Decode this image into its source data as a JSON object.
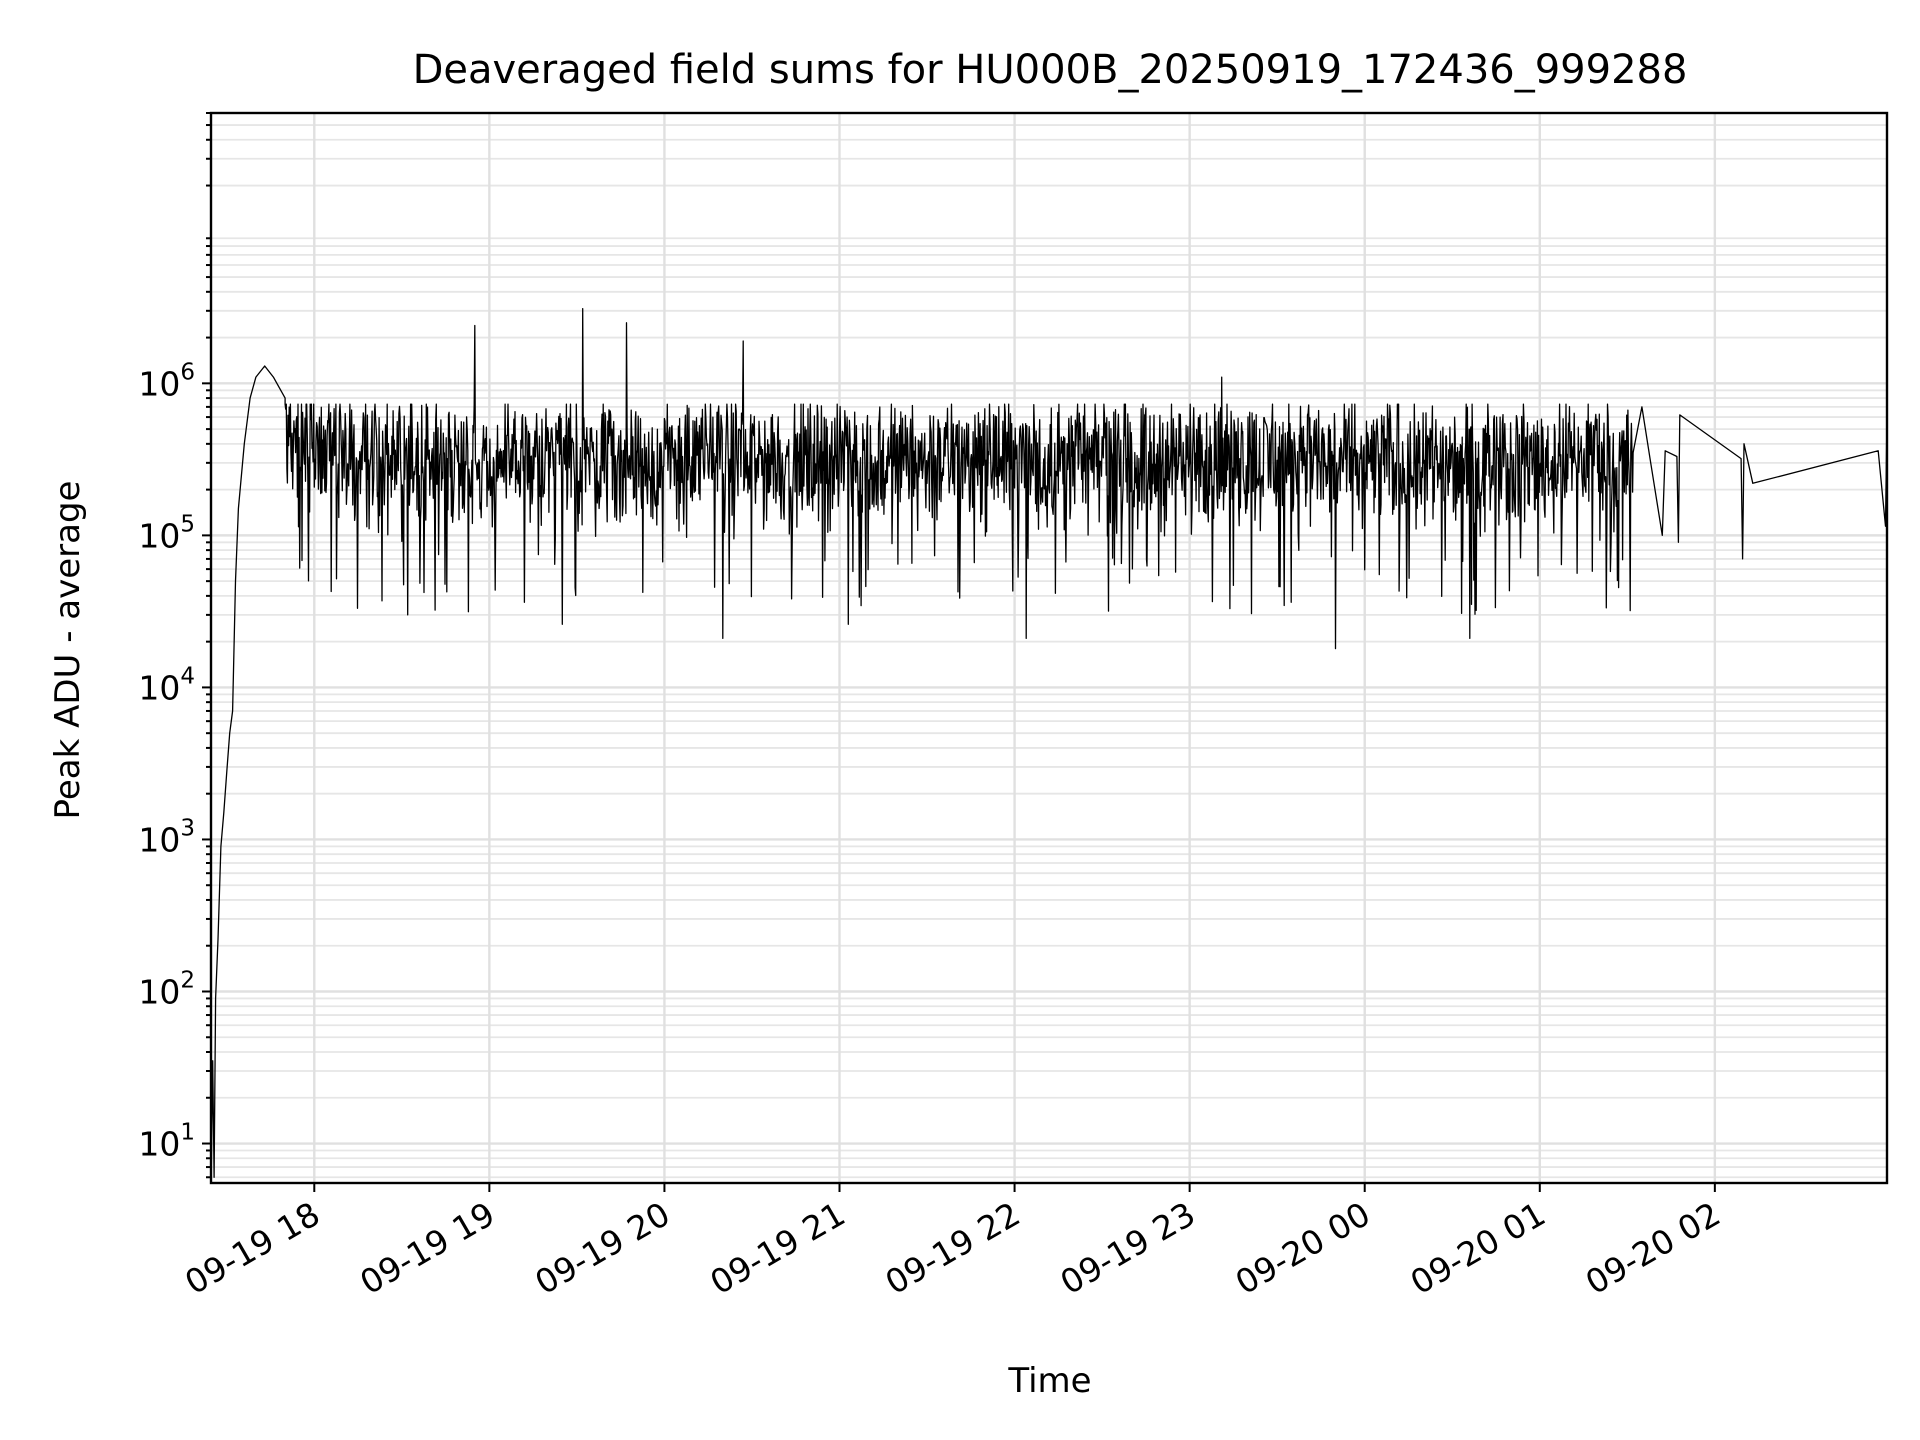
{
  "chart_data": {
    "type": "line",
    "title": "Deaveraged field sums for HU000B_20250919_172436_999288",
    "xlabel": "Time",
    "ylabel": "Peak ADU - average",
    "yscale": "log",
    "grid": true,
    "grid_minor": true,
    "legend": "none",
    "line_color": "#000000",
    "grid_color": "#e0e0e0",
    "xlim": [
      "2025-09-19 17:24:36",
      "2025-09-20 02:59:00"
    ],
    "ylim": [
      5.5,
      60000000
    ],
    "x_ticks": [
      {
        "label": "09-19 18",
        "time": "2025-09-19 18:00"
      },
      {
        "label": "09-19 19",
        "time": "2025-09-19 19:00"
      },
      {
        "label": "09-19 20",
        "time": "2025-09-19 20:00"
      },
      {
        "label": "09-19 21",
        "time": "2025-09-19 21:00"
      },
      {
        "label": "09-19 22",
        "time": "2025-09-19 22:00"
      },
      {
        "label": "09-19 23",
        "time": "2025-09-19 23:00"
      },
      {
        "label": "09-20 00",
        "time": "2025-09-20 00:00"
      },
      {
        "label": "09-20 01",
        "time": "2025-09-20 01:00"
      },
      {
        "label": "09-20 02",
        "time": "2025-09-20 02:00"
      }
    ],
    "y_ticks": [
      {
        "base": "10",
        "exp": "1",
        "value": 10
      },
      {
        "base": "10",
        "exp": "2",
        "value": 100
      },
      {
        "base": "10",
        "exp": "3",
        "value": 1000
      },
      {
        "base": "10",
        "exp": "4",
        "value": 10000
      },
      {
        "base": "10",
        "exp": "5",
        "value": 100000
      },
      {
        "base": "10",
        "exp": "6",
        "value": 1000000
      }
    ],
    "series": [
      {
        "points": [
          [
            "2025-09-19 17:24:40",
            6
          ],
          [
            "2025-09-19 17:25:10",
            35
          ],
          [
            "2025-09-19 17:25:40",
            6
          ],
          [
            "2025-09-19 17:26:10",
            90
          ],
          [
            "2025-09-19 17:27:00",
            220
          ],
          [
            "2025-09-19 17:28:00",
            900
          ],
          [
            "2025-09-19 17:29:00",
            1500
          ],
          [
            "2025-09-19 17:30:00",
            2800
          ],
          [
            "2025-09-19 17:31:00",
            5000
          ],
          [
            "2025-09-19 17:32:00",
            7000
          ],
          [
            "2025-09-19 17:33:00",
            50000
          ],
          [
            "2025-09-19 17:34:00",
            150000
          ],
          [
            "2025-09-19 17:36:00",
            400000
          ],
          [
            "2025-09-19 17:38:00",
            800000
          ],
          [
            "2025-09-19 17:40:00",
            1100000
          ],
          [
            "2025-09-19 17:43:00",
            1300000
          ],
          [
            "2025-09-19 17:46:00",
            1100000
          ],
          [
            "2025-09-19 17:50:00",
            800000
          ]
        ],
        "noise_segment": {
          "start": "2025-09-19 17:50:00",
          "end": "2025-09-20 01:32:00",
          "step_seconds": 12,
          "typical": 300000,
          "upper_envelope": 650000,
          "lower_envelope": 30000
        },
        "spikes": [
          [
            "2025-09-19 18:55:00",
            2400000
          ],
          [
            "2025-09-19 19:32:00",
            3100000
          ],
          [
            "2025-09-19 19:47:00",
            2500000
          ],
          [
            "2025-09-19 20:27:00",
            1900000
          ],
          [
            "2025-09-19 23:11:00",
            1100000
          ],
          [
            "2025-09-19 19:25:00",
            26000
          ],
          [
            "2025-09-19 20:20:00",
            21000
          ],
          [
            "2025-09-19 21:03:00",
            26000
          ],
          [
            "2025-09-19 22:04:00",
            21000
          ],
          [
            "2025-09-19 23:50:00",
            18000
          ],
          [
            "2025-09-20 00:36:00",
            21000
          ],
          [
            "2025-09-19 18:32:00",
            30000
          ],
          [
            "2025-09-20 01:31:00",
            32000
          ]
        ],
        "tail": [
          [
            "2025-09-20 01:32:00",
            350000
          ],
          [
            "2025-09-20 01:35:00",
            700000
          ],
          [
            "2025-09-20 01:38:00",
            300000
          ],
          [
            "2025-09-20 01:42:00",
            100000
          ],
          [
            "2025-09-20 01:43:00",
            360000
          ],
          [
            "2025-09-20 01:47:00",
            330000
          ],
          [
            "2025-09-20 01:47:30",
            90000
          ],
          [
            "2025-09-20 01:48:00",
            620000
          ],
          [
            "2025-09-20 02:09:00",
            320000
          ],
          [
            "2025-09-20 02:09:30",
            70000
          ],
          [
            "2025-09-20 02:10:00",
            400000
          ],
          [
            "2025-09-20 02:13:00",
            220000
          ],
          [
            "2025-09-20 02:56:00",
            360000
          ],
          [
            "2025-09-20 02:58:30",
            115000
          ],
          [
            "2025-09-20 02:59:00",
            640000
          ]
        ]
      }
    ]
  }
}
